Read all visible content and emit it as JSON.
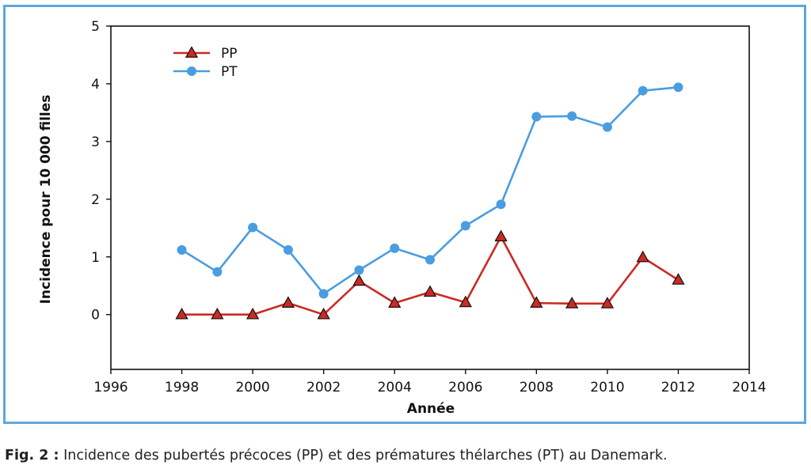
{
  "caption": {
    "label": "Fig. 2 :",
    "text": "Incidence des pubertés précoces (PP) et des prématures thélarches (PT) au Danemark."
  },
  "colors": {
    "frame": "#5ea7dd",
    "pp": "#cc2a22",
    "pp_marker_fill": "#cc2a22",
    "pt": "#4a9de0"
  },
  "chart_data": {
    "type": "line",
    "title": "",
    "xlabel": "Année",
    "ylabel": "Incidence pour 10 000 filles",
    "xlim": [
      1996,
      2014
    ],
    "ylim": [
      -0.95,
      5
    ],
    "xticks": [
      1996,
      1998,
      2000,
      2002,
      2004,
      2006,
      2008,
      2010,
      2012,
      2014
    ],
    "yticks": [
      0,
      1,
      2,
      3,
      4,
      5
    ],
    "grid": false,
    "legend": "top-left",
    "x": [
      1998,
      1999,
      2000,
      2001,
      2002,
      2003,
      2004,
      2005,
      2006,
      2007,
      2008,
      2009,
      2010,
      2011,
      2012
    ],
    "series": [
      {
        "name": "PP",
        "marker": "triangle",
        "values": [
          0,
          0,
          0,
          0.2,
          0,
          0.58,
          0.2,
          0.39,
          0.21,
          1.35,
          0.2,
          0.19,
          0.19,
          0.99,
          0.6
        ]
      },
      {
        "name": "PT",
        "marker": "circle",
        "values": [
          1.12,
          0.74,
          1.51,
          1.12,
          0.36,
          0.77,
          1.15,
          0.95,
          1.54,
          1.91,
          3.43,
          3.44,
          3.25,
          3.88,
          3.94
        ]
      }
    ]
  }
}
